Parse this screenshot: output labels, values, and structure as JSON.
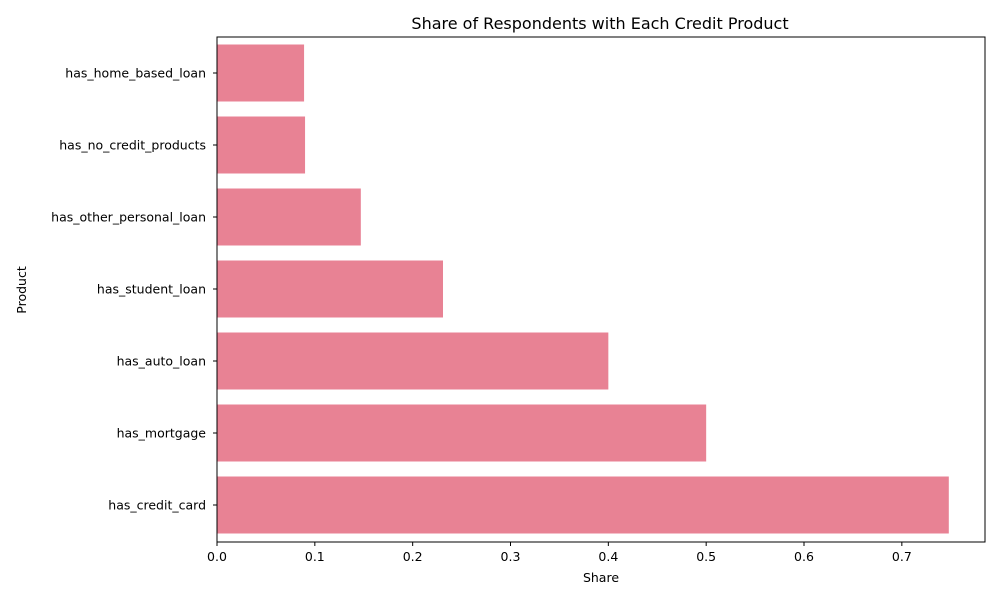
{
  "chart_data": {
    "type": "bar",
    "orientation": "horizontal",
    "title": "Share of Respondents with Each Credit Product",
    "xlabel": "Share",
    "ylabel": "Product",
    "categories": [
      "has_home_based_loan",
      "has_no_credit_products",
      "has_other_personal_loan",
      "has_student_loan",
      "has_auto_loan",
      "has_mortgage",
      "has_credit_card"
    ],
    "values": [
      0.089,
      0.09,
      0.147,
      0.231,
      0.4,
      0.5,
      0.748
    ],
    "xlim": [
      0,
      0.785
    ],
    "xticks": [
      "0.0",
      "0.1",
      "0.2",
      "0.3",
      "0.4",
      "0.5",
      "0.6",
      "0.7"
    ],
    "grid": false,
    "bar_color": "#e88294"
  }
}
